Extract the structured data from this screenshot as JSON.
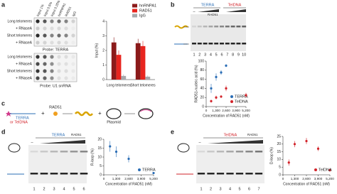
{
  "panels": {
    "a": {
      "letter": "a",
      "columns": [
        "Input 1%",
        "Input 0.5%",
        "Input 0.25%",
        "hnRNPA1",
        "RAD51",
        "IgG"
      ],
      "rows": [
        "Long telomeres",
        "+ RNaseA",
        "Short telomeres",
        "+ RNaseA"
      ],
      "probe1": "Probe: TERRA",
      "probe2": "Probe: U1 snRNA"
    },
    "b": {
      "letter": "b",
      "terra": "TERRA",
      "teldna": "TelDNA",
      "minus": "–",
      "rad51": "RAD51",
      "lanes": [
        "1",
        "2",
        "3",
        "4",
        "5",
        "6",
        "7",
        "8",
        "9",
        "10"
      ]
    },
    "c": {
      "letter": "c",
      "terra": "TERRA",
      "or_teldna": "or TelDNA",
      "rad51": "RAD51",
      "plasmid": "Plasmid"
    },
    "d": {
      "letter": "d",
      "terra": "TERRA",
      "minus": "–",
      "rad51": "RAD51",
      "lanes": [
        "1",
        "2",
        "3",
        "4",
        "5",
        "6"
      ]
    },
    "e": {
      "letter": "e",
      "teldna": "TelDNA",
      "minus": "–",
      "rad51": "RAD51",
      "lanes": [
        "1",
        "2",
        "3",
        "4",
        "5",
        "6",
        "7"
      ]
    }
  },
  "chart_data": [
    {
      "type": "bar",
      "y_label": "Input (%)",
      "categories": [
        "Long telomeres",
        "Short telomeres"
      ],
      "ylim": [
        0,
        4
      ],
      "yticks": [
        0,
        1,
        2,
        3,
        4
      ],
      "series": [
        {
          "name": "hnRNPA1",
          "color": "#8b1a1a",
          "values": [
            2.55,
            2.5
          ],
          "errors": [
            0.35,
            0.3
          ]
        },
        {
          "name": "RAD51",
          "color": "#e8251f",
          "values": [
            1.7,
            2.3
          ],
          "errors": [
            0.3,
            0.35
          ]
        },
        {
          "name": "IgG",
          "color": "#a7a9ac",
          "values": [
            0.25,
            0.2
          ],
          "errors": [
            0.1,
            0.08
          ]
        }
      ]
    },
    {
      "type": "scatter",
      "y_label": "RAD51-nucleic acid (%)",
      "x_label": "Concentration of RAD51 (nM)",
      "xlim": [
        0,
        5200
      ],
      "ylim": [
        0,
        100
      ],
      "xticks": [
        0,
        {
          "value": 1300,
          "label": "1,300"
        },
        {
          "value": 2600,
          "label": "2,600"
        },
        {
          "value": 3900,
          "label": "3,900"
        },
        {
          "value": 5200,
          "label": "5,200"
        }
      ],
      "yticks": [
        0,
        20,
        40,
        60,
        80,
        100
      ],
      "series": [
        {
          "name": "TERRA",
          "color": "#2a6db5",
          "x": [
            650,
            1300,
            1950,
            2600
          ],
          "values": [
            40,
            65,
            75,
            90
          ],
          "errors": [
            10,
            8,
            5,
            3
          ]
        },
        {
          "name": "TelDNA",
          "color": "#d2232a",
          "x": [
            650,
            1300,
            1950,
            2600,
            5200
          ],
          "values": [
            12,
            20,
            22,
            40,
            25
          ],
          "errors": [
            3,
            4,
            3,
            6,
            5
          ]
        }
      ]
    },
    {
      "type": "scatter",
      "y_label": "R-loop (%)",
      "x_label": "Concentration of RAD51 (nM)",
      "xlim": [
        0,
        5200
      ],
      "ylim": [
        0,
        20
      ],
      "xticks": [
        0,
        {
          "value": 1300,
          "label": "1,300"
        },
        {
          "value": 2600,
          "label": "2,600"
        },
        {
          "value": 3900,
          "label": "3,900"
        },
        {
          "value": 5200,
          "label": "5,200"
        }
      ],
      "yticks": [
        0,
        5,
        10,
        15,
        20
      ],
      "series": [
        {
          "name": "TERRA",
          "color": "#2a6db5",
          "x": [
            650,
            1300,
            2600,
            5200
          ],
          "values": [
            16,
            13,
            9,
            1
          ],
          "errors": [
            3,
            3,
            2,
            0.5
          ]
        }
      ]
    },
    {
      "type": "scatter",
      "y_label": "D-loop (%)",
      "x_label": "Concentration of RAD51 (nM)",
      "xlim": [
        0,
        5200
      ],
      "ylim": [
        0,
        25
      ],
      "xticks": [
        0,
        {
          "value": 1300,
          "label": "1,300"
        },
        {
          "value": 2600,
          "label": "2,600"
        },
        {
          "value": 3900,
          "label": "3,900"
        },
        {
          "value": 5200,
          "label": "5,200"
        }
      ],
      "yticks": [
        0,
        5,
        10,
        15,
        20,
        25
      ],
      "series": [
        {
          "name": "TelDNA",
          "color": "#d2232a",
          "x": [
            650,
            1300,
            2600,
            3900,
            5200
          ],
          "values": [
            8,
            20,
            22,
            17,
            3
          ],
          "errors": [
            2,
            2,
            2,
            1.5,
            1
          ]
        }
      ]
    }
  ]
}
